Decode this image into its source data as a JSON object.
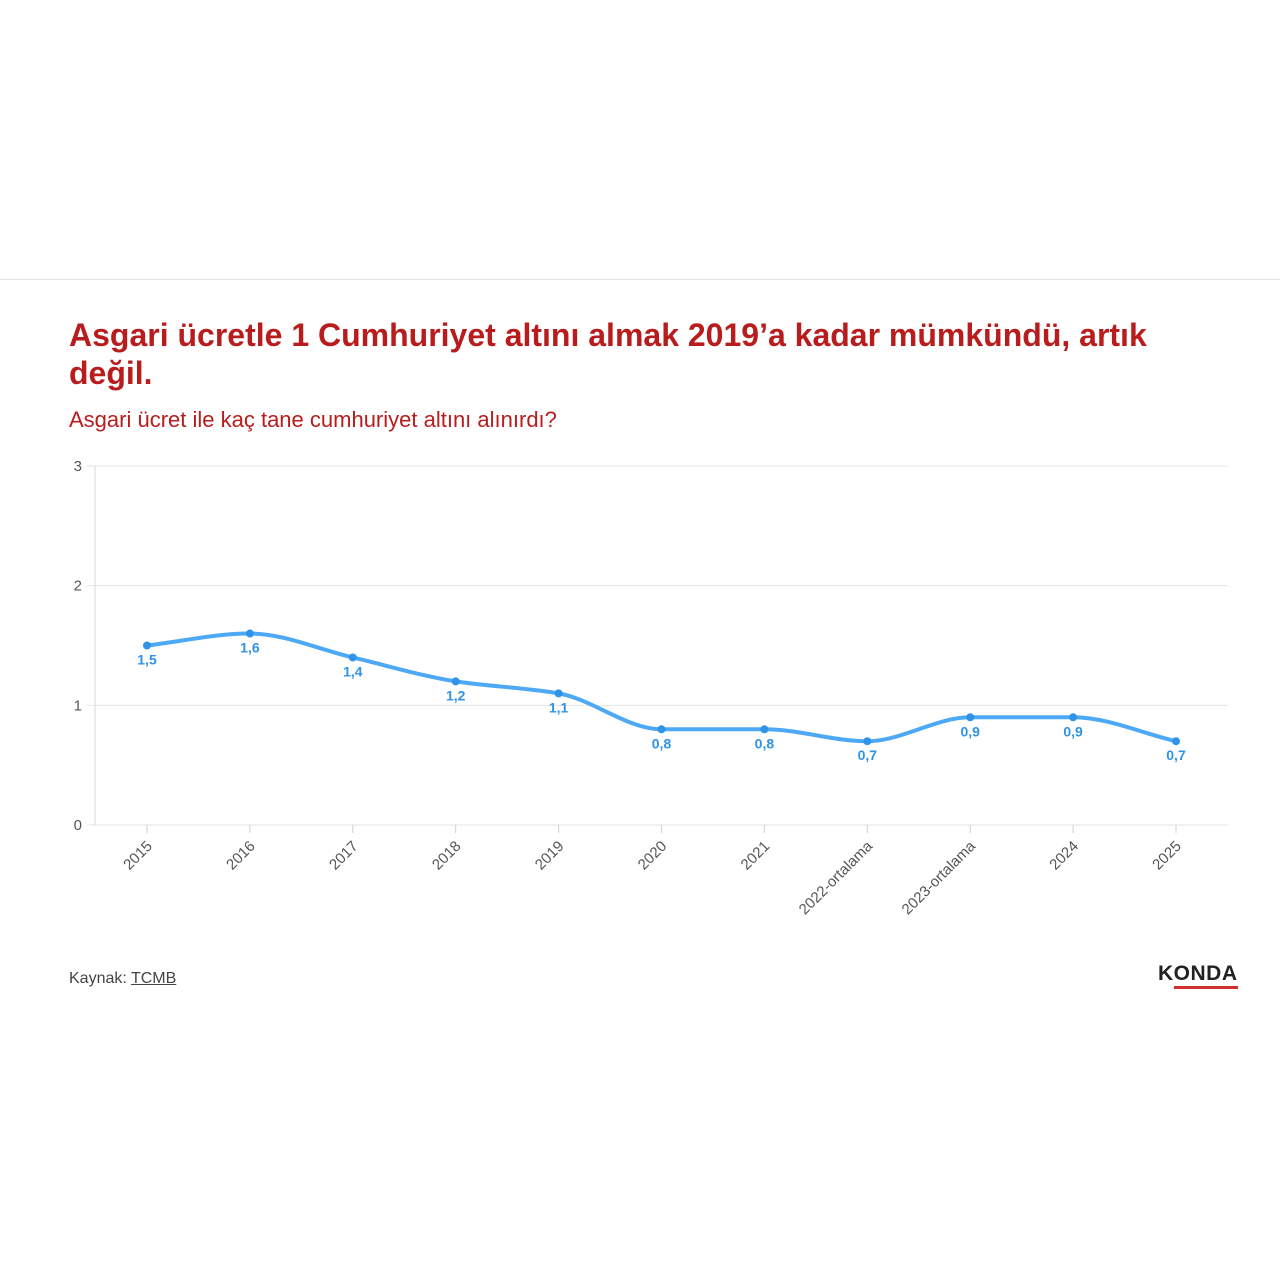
{
  "title": "Asgari ücretle 1 Cumhuriyet altını almak 2019’a kadar mümkündü, artık değil.",
  "subtitle": "Asgari ücret ile kaç tane cumhuriyet altını alınırdı?",
  "source": {
    "label": "Kaynak:",
    "link_text": "TCMB"
  },
  "logo": {
    "text": "KONDA"
  },
  "colors": {
    "title": "#b91c1c",
    "line": "#4da8f5",
    "label": "#2f93e8",
    "grid": "#e6e6e6"
  },
  "chart_data": {
    "type": "line",
    "categories": [
      "2015",
      "2016",
      "2017",
      "2018",
      "2019",
      "2020",
      "2021",
      "2022-ortalama",
      "2023-ortalama",
      "2024",
      "2025"
    ],
    "series": [
      {
        "values": [
          1.5,
          1.6,
          1.4,
          1.2,
          1.1,
          0.8,
          0.8,
          0.7,
          0.9,
          0.9,
          0.7
        ]
      }
    ],
    "value_labels": [
      "1,5",
      "1,6",
      "1,4",
      "1,2",
      "1,1",
      "0,8",
      "0,8",
      "0,7",
      "0,9",
      "0,9",
      "0,7"
    ],
    "yticks": [
      0,
      1,
      2,
      3
    ],
    "ylim": [
      0,
      3
    ],
    "grid": true,
    "smooth": true
  }
}
